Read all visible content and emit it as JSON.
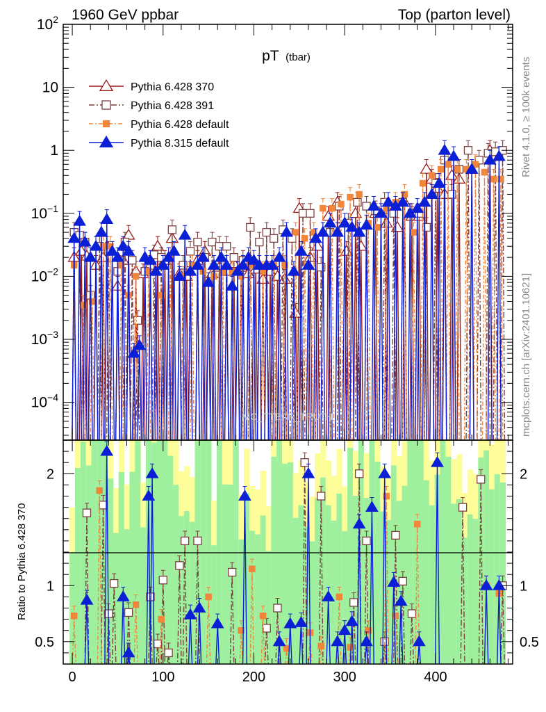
{
  "chart_data": {
    "type": "line",
    "header_left": "1960 GeV ppbar",
    "header_right": "Top (parton level)",
    "title_main": "pT",
    "title_sub": "(tbar)",
    "side_rivet": "Rivet 4.1.0, ≥ 100k events",
    "side_mcplots": "mcplots.cern.ch [arXiv:2401.10621]",
    "watermark": "MC_TTBAR_TRUTH",
    "ratio_ylabel": "Ratio to Pythia 6.428 370",
    "x_range": [
      -10,
      485
    ],
    "x_ticks": [
      "0",
      "100",
      "200",
      "300",
      "400"
    ],
    "x_tick_values": [
      0,
      100,
      200,
      300,
      400
    ],
    "y_main_range_log10": [
      -4.6,
      2
    ],
    "y_main_tick_labels": [
      {
        "base": "10",
        "exp": "2",
        "value_log10": 2
      },
      {
        "base": "10",
        "exp": "",
        "value_log10": 1
      },
      {
        "base": "1",
        "exp": "",
        "value_log10": 0
      },
      {
        "base": "10",
        "exp": "−1",
        "value_log10": -1
      },
      {
        "base": "10",
        "exp": "−2",
        "value_log10": -2
      },
      {
        "base": "10",
        "exp": "−3",
        "value_log10": -3
      },
      {
        "base": "10",
        "exp": "−4",
        "value_log10": -4
      }
    ],
    "y_ratio_range": [
      0.3,
      2.3
    ],
    "y_ratio_ticks": [
      "0.5",
      "1",
      "2"
    ],
    "y_ratio_tick_values": [
      0.5,
      1,
      2
    ],
    "series": [
      {
        "name": "Pythia 6.428 370",
        "color": "#9b1a1a",
        "marker": "triangle-open",
        "dash": "",
        "points": [
          [
            2,
            0.02
          ],
          [
            10,
            0.025
          ],
          [
            16,
            0.021
          ],
          [
            26,
            0.015
          ],
          [
            34,
            0.02
          ],
          [
            38,
            0.03
          ],
          [
            50,
            0.007
          ],
          [
            56,
            0.018
          ],
          [
            62,
            0.045
          ],
          [
            70,
            0.012
          ],
          [
            78,
            0.011
          ],
          [
            86,
            0.015
          ],
          [
            94,
            0.03
          ],
          [
            102,
            0.018
          ],
          [
            110,
            0.04
          ],
          [
            118,
            0.011
          ],
          [
            126,
            0.01
          ],
          [
            138,
            0.018
          ],
          [
            146,
            0.025
          ],
          [
            154,
            0.011
          ],
          [
            162,
            0.014
          ],
          [
            170,
            0.012
          ],
          [
            178,
            0.016
          ],
          [
            186,
            0.014
          ],
          [
            194,
            0.011
          ],
          [
            202,
            0.013
          ],
          [
            210,
            0.009
          ],
          [
            218,
            0.012
          ],
          [
            226,
            0.01
          ],
          [
            234,
            0.009
          ],
          [
            246,
            0.0026
          ],
          [
            250,
            0.12
          ],
          [
            262,
            0.02
          ],
          [
            270,
            0.03
          ],
          [
            282,
            0.09
          ],
          [
            292,
            0.15
          ],
          [
            302,
            0.025
          ],
          [
            312,
            0.1
          ],
          [
            318,
            0.03
          ],
          [
            334,
            0.1
          ],
          [
            346,
            0.07
          ],
          [
            358,
            0.06
          ],
          [
            366,
            0.15
          ],
          [
            374,
            0.09
          ],
          [
            382,
            0.09
          ],
          [
            390,
            0.5
          ],
          [
            396,
            0.35
          ],
          [
            402,
            0.25
          ],
          [
            410,
            0.2
          ],
          [
            418,
            0.4
          ],
          [
            426,
            0.35
          ],
          [
            440,
            0.5
          ],
          [
            460,
            1.0
          ]
        ]
      },
      {
        "name": "Pythia 6.428 391",
        "color": "#7a3f3f",
        "marker": "square-open",
        "dash": "8,3,2,3",
        "points": [
          [
            2,
            0.05
          ],
          [
            8,
            0.045
          ],
          [
            14,
            0.035
          ],
          [
            20,
            0.005
          ],
          [
            30,
            0.03
          ],
          [
            40,
            0.025
          ],
          [
            50,
            0.012
          ],
          [
            58,
            0.035
          ],
          [
            66,
            0.018
          ],
          [
            72,
            0.002
          ],
          [
            80,
            0.012
          ],
          [
            90,
            0.022
          ],
          [
            98,
            0.02
          ],
          [
            110,
            0.055
          ],
          [
            122,
            0.015
          ],
          [
            130,
            0.025
          ],
          [
            138,
            0.035
          ],
          [
            146,
            0.02
          ],
          [
            154,
            0.035
          ],
          [
            162,
            0.03
          ],
          [
            170,
            0.03
          ],
          [
            178,
            0.02
          ],
          [
            188,
            0.018
          ],
          [
            196,
            0.06
          ],
          [
            206,
            0.035
          ],
          [
            214,
            0.05
          ],
          [
            222,
            0.04
          ],
          [
            232,
            0.055
          ],
          [
            242,
            0.04
          ],
          [
            254,
            0.1
          ],
          [
            262,
            0.1
          ],
          [
            274,
            0.014
          ],
          [
            284,
            0.05
          ],
          [
            294,
            0.13
          ],
          [
            304,
            0.07
          ],
          [
            314,
            0.15
          ],
          [
            324,
            0.13
          ],
          [
            334,
            0.11
          ],
          [
            344,
            0.15
          ],
          [
            354,
            0.1
          ],
          [
            364,
            0.15
          ],
          [
            374,
            0.1
          ],
          [
            382,
            0.1
          ],
          [
            390,
            0.06
          ],
          [
            400,
            0.3
          ],
          [
            410,
            0.7
          ],
          [
            418,
            0.2
          ],
          [
            426,
            0.5
          ],
          [
            436,
            1.0
          ],
          [
            448,
            0.7
          ],
          [
            458,
            0.9
          ],
          [
            466,
            0.95
          ],
          [
            474,
            1.0
          ]
        ]
      },
      {
        "name": "Pythia 6.428 default",
        "color": "#f0863b",
        "marker": "square-filled",
        "dash": "6,3,2,3",
        "points": [
          [
            2,
            0.015
          ],
          [
            12,
            0.0035
          ],
          [
            22,
            0.004
          ],
          [
            34,
            0.03
          ],
          [
            42,
            0.03
          ],
          [
            54,
            0.015
          ],
          [
            62,
            0.005
          ],
          [
            70,
            0.01
          ],
          [
            84,
            0.012
          ],
          [
            98,
            0.005
          ],
          [
            108,
            0.02
          ],
          [
            122,
            0.01
          ],
          [
            132,
            0.015
          ],
          [
            144,
            0.012
          ],
          [
            156,
            0.01
          ],
          [
            166,
            0.012
          ],
          [
            176,
            0.012
          ],
          [
            186,
            0.01
          ],
          [
            196,
            0.015
          ],
          [
            210,
            0.012
          ],
          [
            222,
            0.015
          ],
          [
            234,
            0.015
          ],
          [
            246,
            0.05
          ],
          [
            256,
            0.04
          ],
          [
            266,
            0.05
          ],
          [
            276,
            0.12
          ],
          [
            286,
            0.12
          ],
          [
            296,
            0.14
          ],
          [
            306,
            0.18
          ],
          [
            316,
            0.2
          ],
          [
            326,
            0.07
          ],
          [
            336,
            0.06
          ],
          [
            346,
            0.12
          ],
          [
            356,
            0.15
          ],
          [
            366,
            0.2
          ],
          [
            376,
            0.05
          ],
          [
            386,
            0.3
          ],
          [
            396,
            0.4
          ],
          [
            406,
            0.5
          ],
          [
            414,
            0.6
          ],
          [
            424,
            0.5
          ],
          [
            434,
            0.5
          ],
          [
            444,
            0.6
          ],
          [
            454,
            0.45
          ],
          [
            464,
            0.35
          ],
          [
            472,
            0.35
          ]
        ]
      },
      {
        "name": "Pythia 8.315 default",
        "color": "#0a1fd6",
        "marker": "triangle-filled",
        "dash": "",
        "points": [
          [
            2,
            0.04
          ],
          [
            8,
            0.075
          ],
          [
            14,
            0.035
          ],
          [
            20,
            0.02
          ],
          [
            26,
            0.03
          ],
          [
            32,
            0.05
          ],
          [
            38,
            0.08
          ],
          [
            44,
            0.025
          ],
          [
            50,
            0.02
          ],
          [
            56,
            0.03
          ],
          [
            62,
            0.025
          ],
          [
            68,
            0.0006
          ],
          [
            74,
            0.0008
          ],
          [
            80,
            0.02
          ],
          [
            86,
            0.018
          ],
          [
            92,
            0.012
          ],
          [
            100,
            0.015
          ],
          [
            106,
            0.02
          ],
          [
            112,
            0.025
          ],
          [
            118,
            0.01
          ],
          [
            124,
            0.045
          ],
          [
            130,
            0.012
          ],
          [
            138,
            0.015
          ],
          [
            144,
            0.02
          ],
          [
            150,
            0.008
          ],
          [
            156,
            0.015
          ],
          [
            164,
            0.02
          ],
          [
            170,
            0.015
          ],
          [
            176,
            0.007
          ],
          [
            182,
            0.012
          ],
          [
            188,
            0.015
          ],
          [
            194,
            0.02
          ],
          [
            200,
            0.018
          ],
          [
            206,
            0.015
          ],
          [
            214,
            0.015
          ],
          [
            220,
            0.015
          ],
          [
            228,
            0.02
          ],
          [
            236,
            0.05
          ],
          [
            244,
            0.012
          ],
          [
            252,
            0.025
          ],
          [
            260,
            0.015
          ],
          [
            268,
            0.04
          ],
          [
            276,
            0.05
          ],
          [
            284,
            0.07
          ],
          [
            292,
            0.05
          ],
          [
            300,
            0.07
          ],
          [
            308,
            0.06
          ],
          [
            316,
            0.05
          ],
          [
            324,
            0.065
          ],
          [
            332,
            0.13
          ],
          [
            340,
            0.1
          ],
          [
            348,
            0.15
          ],
          [
            356,
            0.13
          ],
          [
            364,
            0.15
          ],
          [
            372,
            0.1
          ],
          [
            380,
            0.12
          ],
          [
            388,
            0.15
          ],
          [
            396,
            0.2
          ],
          [
            404,
            0.3
          ],
          [
            410,
            1.0
          ],
          [
            420,
            0.8
          ],
          [
            440,
            0.5
          ],
          [
            460,
            0.7
          ],
          [
            470,
            0.8
          ]
        ]
      }
    ],
    "ratio_series": [
      {
        "name": "Pythia 6.428 391",
        "points": [
          [
            16,
            1.65
          ],
          [
            34,
            1.72
          ],
          [
            40,
            0.75
          ],
          [
            46,
            1.02
          ],
          [
            62,
            0.76
          ],
          [
            86,
            0.9
          ],
          [
            94,
            0.48
          ],
          [
            100,
            1.05
          ],
          [
            106,
            0.4
          ],
          [
            118,
            1.18
          ],
          [
            124,
            1.4
          ],
          [
            138,
            1.4
          ],
          [
            176,
            1.12
          ],
          [
            214,
            0.62
          ],
          [
            226,
            0.8
          ],
          [
            256,
            2.1
          ],
          [
            274,
            1.8
          ],
          [
            310,
            0.85
          ],
          [
            316,
            2.0
          ],
          [
            324,
            1.4
          ],
          [
            344,
            0.5
          ],
          [
            356,
            1.45
          ],
          [
            364,
            1.04
          ],
          [
            374,
            0.75
          ],
          [
            430,
            1.7
          ],
          [
            450,
            1.95
          ],
          [
            474,
            1.0
          ]
        ]
      },
      {
        "name": "Pythia 6.428 default",
        "points": [
          [
            2,
            0.73
          ],
          [
            30,
            1.85
          ],
          [
            70,
            0.83
          ],
          [
            98,
            0.7
          ],
          [
            150,
            0.9
          ],
          [
            186,
            0.6
          ],
          [
            198,
            1.15
          ],
          [
            210,
            0.73
          ],
          [
            236,
            0.44
          ],
          [
            262,
            0.58
          ],
          [
            274,
            0.46
          ],
          [
            294,
            0.9
          ],
          [
            306,
            0.45
          ],
          [
            326,
            0.6
          ],
          [
            346,
            1.8
          ],
          [
            356,
            0.73
          ],
          [
            380,
            1.55
          ],
          [
            456,
            1.0
          ],
          [
            470,
            0.93
          ]
        ]
      },
      {
        "name": "Pythia 8.315 default",
        "points": [
          [
            16,
            0.87
          ],
          [
            38,
            2.2
          ],
          [
            56,
            0.9
          ],
          [
            62,
            0.4
          ],
          [
            84,
            1.8
          ],
          [
            88,
            2.0
          ],
          [
            130,
            0.74
          ],
          [
            140,
            0.8
          ],
          [
            160,
            0.66
          ],
          [
            190,
            1.8
          ],
          [
            228,
            0.5
          ],
          [
            240,
            0.66
          ],
          [
            252,
            0.67
          ],
          [
            260,
            2.0
          ],
          [
            282,
            0.9
          ],
          [
            292,
            0.5
          ],
          [
            300,
            0.6
          ],
          [
            308,
            0.68
          ],
          [
            316,
            1.55
          ],
          [
            324,
            0.5
          ],
          [
            330,
            1.7
          ],
          [
            344,
            2.0
          ],
          [
            354,
            1.03
          ],
          [
            362,
            0.86
          ],
          [
            382,
            0.5
          ],
          [
            402,
            2.1
          ],
          [
            456,
            1.0
          ],
          [
            470,
            1.0
          ]
        ]
      }
    ]
  }
}
